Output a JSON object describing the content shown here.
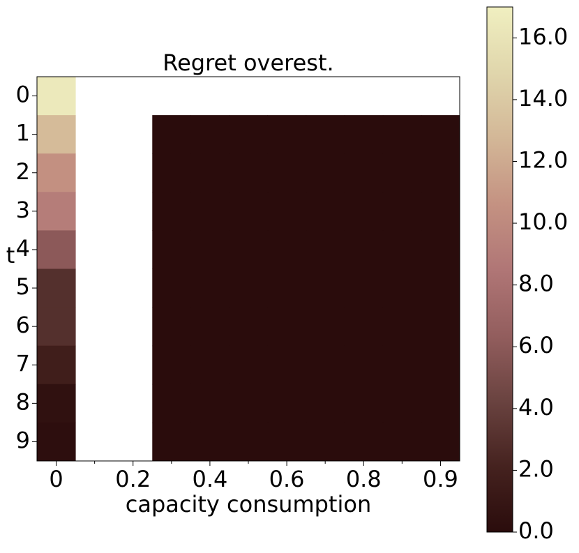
{
  "chart_data": {
    "type": "heatmap",
    "title": "Regret overest.",
    "x_label": "capacity consumption",
    "y_label": "t",
    "categories": [
      "0",
      null,
      "0.2",
      null,
      "0.4",
      null,
      "0.6",
      null,
      "0.8",
      null,
      "0.9"
    ],
    "y_categories": [
      "0",
      "1",
      "2",
      "3",
      "4",
      "5",
      "6",
      "7",
      "8",
      "9"
    ],
    "z": [
      [
        16.5,
        null,
        null,
        null,
        null,
        null,
        null,
        null,
        null,
        null,
        null
      ],
      [
        13,
        null,
        null,
        0,
        0,
        0,
        0,
        0,
        0,
        0,
        0
      ],
      [
        10.5,
        null,
        null,
        0,
        0,
        0,
        0,
        0,
        0,
        0,
        0
      ],
      [
        9,
        null,
        null,
        0,
        0,
        0,
        0,
        0,
        0,
        0,
        0
      ],
      [
        6,
        null,
        null,
        0,
        0,
        0,
        0,
        0,
        0,
        0,
        0
      ],
      [
        3,
        null,
        null,
        0,
        0,
        0,
        0,
        0,
        0,
        0,
        0
      ],
      [
        3,
        null,
        null,
        0,
        0,
        0,
        0,
        0,
        0,
        0,
        0
      ],
      [
        1.7,
        null,
        null,
        0,
        0,
        0,
        0,
        0,
        0,
        0,
        0
      ],
      [
        0.5,
        null,
        null,
        0,
        0,
        0,
        0,
        0,
        0,
        0,
        0
      ],
      [
        0.2,
        null,
        null,
        0,
        0,
        0,
        0,
        0,
        0,
        0,
        0
      ]
    ],
    "colormap": [
      "#2a0c0c",
      "#45221f",
      "#6a4340",
      "#935e5e",
      "#b07676",
      "#c49282",
      "#d3b797",
      "#e0d6ac",
      "#f0efc0"
    ],
    "clim": [
      0,
      17
    ],
    "cticks": [
      {
        "value": 0,
        "label": "0.0"
      },
      {
        "value": 2,
        "label": "2.0"
      },
      {
        "value": 4,
        "label": "4.0"
      },
      {
        "value": 6,
        "label": "6.0"
      },
      {
        "value": 8,
        "label": "8.0"
      },
      {
        "value": 10,
        "label": "10.0"
      },
      {
        "value": 12,
        "label": "12.0"
      },
      {
        "value": 14,
        "label": "14.0"
      },
      {
        "value": 16,
        "label": "16.0"
      }
    ]
  }
}
